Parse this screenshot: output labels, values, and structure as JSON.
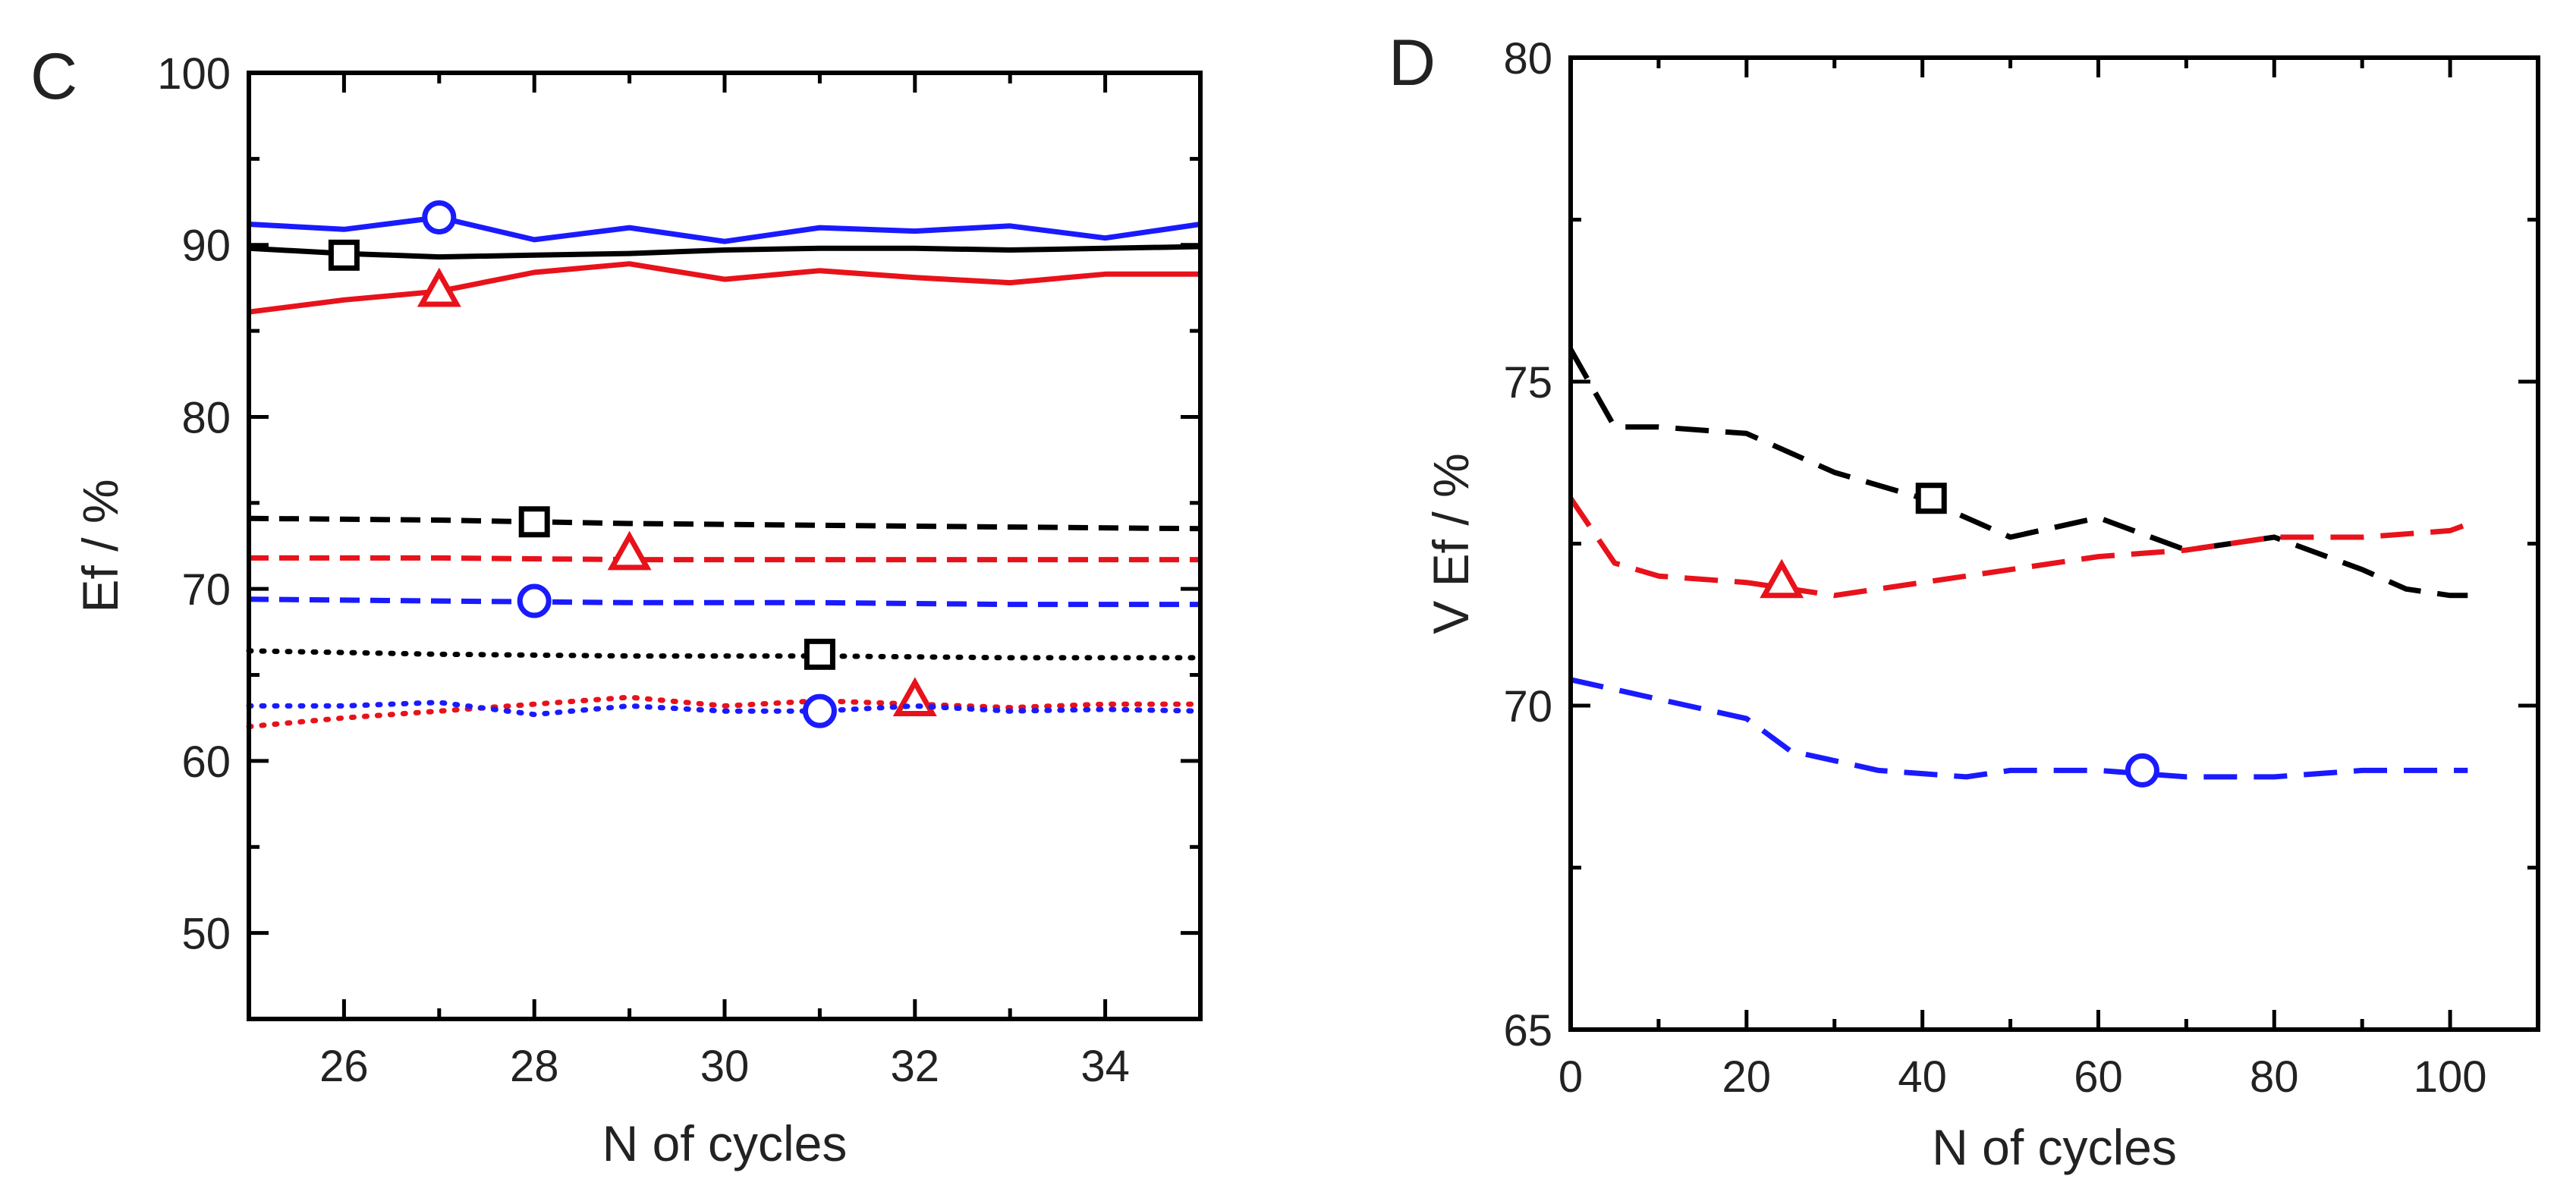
{
  "chart_data": [
    {
      "type": "line",
      "panel_label": "C",
      "xlabel": "N of cycles",
      "ylabel": "Ef / %",
      "xlim": [
        25,
        35
      ],
      "ylim": [
        45,
        100
      ],
      "xticks": [
        26,
        28,
        30,
        32,
        34
      ],
      "yticks": [
        50,
        60,
        70,
        80,
        90,
        100
      ],
      "grid": false,
      "series": [
        {
          "name": "blue-solid",
          "color": "#1a1aff",
          "dash": "solid",
          "marker": "circle",
          "marker_at": [
            27,
            91.6
          ],
          "x": [
            25,
            26,
            27,
            28,
            29,
            30,
            31,
            32,
            33,
            34,
            35
          ],
          "y": [
            91.2,
            90.9,
            91.6,
            90.3,
            91.0,
            90.2,
            91.0,
            90.8,
            91.1,
            90.4,
            91.2
          ]
        },
        {
          "name": "black-solid",
          "color": "#000000",
          "dash": "solid",
          "marker": "square",
          "marker_at": [
            26,
            89.4
          ],
          "x": [
            25,
            26,
            27,
            28,
            29,
            30,
            31,
            32,
            33,
            34,
            35
          ],
          "y": [
            89.8,
            89.5,
            89.3,
            89.4,
            89.5,
            89.7,
            89.8,
            89.8,
            89.7,
            89.8,
            89.9
          ]
        },
        {
          "name": "red-solid",
          "color": "#e8121b",
          "dash": "solid",
          "marker": "triangle",
          "marker_at": [
            27,
            87.3
          ],
          "x": [
            25,
            26,
            27,
            28,
            29,
            30,
            31,
            32,
            33,
            34,
            35
          ],
          "y": [
            86.1,
            86.8,
            87.3,
            88.4,
            88.9,
            88.0,
            88.5,
            88.1,
            87.8,
            88.3,
            88.3
          ]
        },
        {
          "name": "black-dashed",
          "color": "#000000",
          "dash": "dashed",
          "marker": "square",
          "marker_at": [
            28,
            73.9
          ],
          "x": [
            25,
            27,
            29,
            31,
            33,
            35
          ],
          "y": [
            74.1,
            74.0,
            73.8,
            73.7,
            73.6,
            73.5
          ]
        },
        {
          "name": "red-dashed",
          "color": "#e8121b",
          "dash": "dashed",
          "marker": "triangle",
          "marker_at": [
            29,
            72.0
          ],
          "x": [
            25,
            27,
            29,
            31,
            33,
            35
          ],
          "y": [
            71.8,
            71.8,
            71.7,
            71.7,
            71.7,
            71.7
          ]
        },
        {
          "name": "blue-dashed",
          "color": "#1a1aff",
          "dash": "dashed",
          "marker": "circle",
          "marker_at": [
            28,
            69.3
          ],
          "x": [
            25,
            27,
            29,
            31,
            33,
            35
          ],
          "y": [
            69.4,
            69.3,
            69.2,
            69.2,
            69.1,
            69.1
          ]
        },
        {
          "name": "black-dotted",
          "color": "#000000",
          "dash": "dotted",
          "marker": "square",
          "marker_at": [
            31,
            66.2
          ],
          "x": [
            25,
            27,
            29,
            31,
            33,
            35
          ],
          "y": [
            66.4,
            66.2,
            66.1,
            66.1,
            66.0,
            66.0
          ]
        },
        {
          "name": "red-dotted",
          "color": "#e8121b",
          "dash": "dotted",
          "marker": "triangle",
          "marker_at": [
            32,
            63.5
          ],
          "x": [
            25,
            26,
            27,
            28,
            29,
            30,
            31,
            32,
            33,
            34,
            35
          ],
          "y": [
            62.0,
            62.5,
            62.9,
            63.3,
            63.7,
            63.2,
            63.5,
            63.3,
            63.1,
            63.3,
            63.3
          ]
        },
        {
          "name": "blue-dotted",
          "color": "#1a1aff",
          "dash": "dotted",
          "marker": "circle",
          "marker_at": [
            31,
            62.9
          ],
          "x": [
            25,
            26,
            27,
            28,
            29,
            30,
            31,
            32,
            33,
            34,
            35
          ],
          "y": [
            63.2,
            63.2,
            63.4,
            62.7,
            63.2,
            62.9,
            62.9,
            63.2,
            62.9,
            63.0,
            62.9
          ]
        }
      ]
    },
    {
      "type": "line",
      "panel_label": "D",
      "xlabel": "N of cycles",
      "ylabel": "V Ef / %",
      "xlim": [
        0,
        110
      ],
      "ylim": [
        65,
        80
      ],
      "xticks": [
        0,
        20,
        40,
        60,
        80,
        100
      ],
      "yticks": [
        65,
        70,
        75,
        80
      ],
      "grid": false,
      "series": [
        {
          "name": "black-dashed",
          "color": "#000000",
          "dash": "long-dashed",
          "marker": "square",
          "marker_at": [
            41,
            73.2
          ],
          "x": [
            0,
            5,
            10,
            20,
            30,
            40,
            50,
            60,
            70,
            80,
            90,
            95,
            100,
            102
          ],
          "y": [
            75.5,
            74.3,
            74.3,
            74.2,
            73.6,
            73.2,
            72.6,
            72.9,
            72.4,
            72.6,
            72.1,
            71.8,
            71.7,
            71.7
          ]
        },
        {
          "name": "red-dashed",
          "color": "#e8121b",
          "dash": "long-dashed",
          "marker": "triangle",
          "marker_at": [
            24,
            71.9
          ],
          "x": [
            0,
            5,
            10,
            20,
            30,
            40,
            50,
            60,
            70,
            80,
            90,
            100,
            102
          ],
          "y": [
            73.2,
            72.2,
            72.0,
            71.9,
            71.7,
            71.9,
            72.1,
            72.3,
            72.4,
            72.6,
            72.6,
            72.7,
            72.8
          ]
        },
        {
          "name": "blue-dashed",
          "color": "#1a1aff",
          "dash": "long-dashed",
          "marker": "circle",
          "marker_at": [
            65,
            69.0
          ],
          "x": [
            0,
            10,
            20,
            25,
            35,
            45,
            50,
            60,
            70,
            80,
            90,
            102
          ],
          "y": [
            70.4,
            70.1,
            69.8,
            69.3,
            69.0,
            68.9,
            69.0,
            69.0,
            68.9,
            68.9,
            69.0,
            69.0
          ]
        }
      ]
    }
  ]
}
